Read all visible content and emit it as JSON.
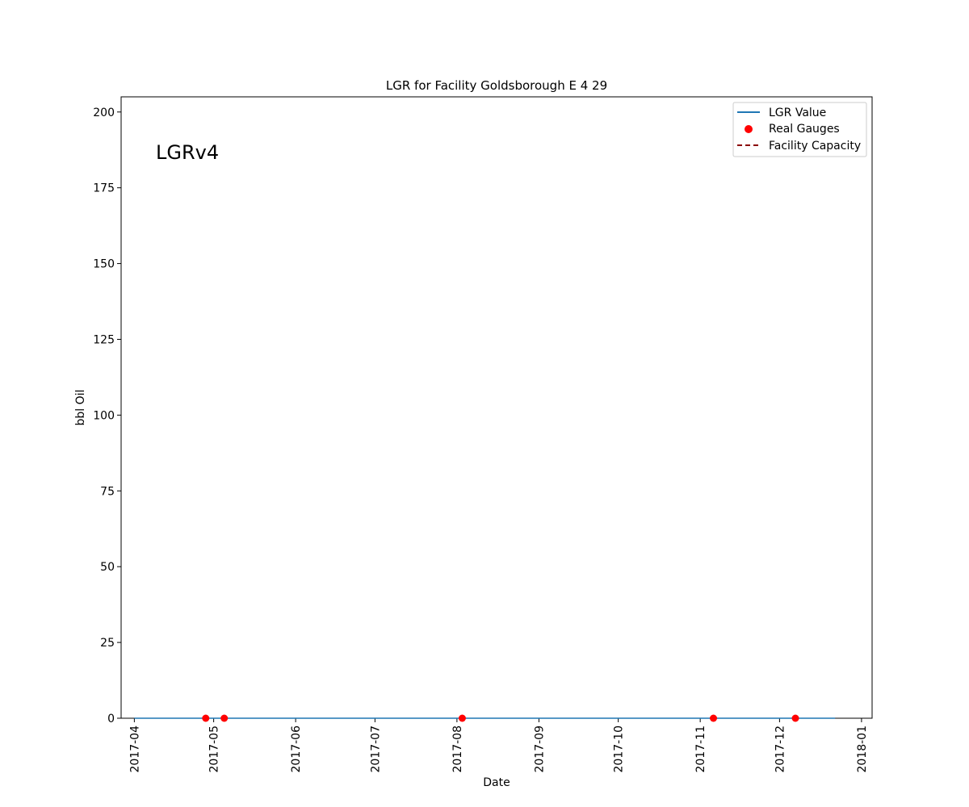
{
  "chart_data": {
    "type": "line",
    "title": "LGR for Facility Goldsborough E 4 29",
    "xlabel": "Date",
    "ylabel": "bbl Oil",
    "annotation": "LGRv4",
    "x_type": "date",
    "xlim": [
      "2017-03-27",
      "2018-01-05"
    ],
    "ylim": [
      0,
      205
    ],
    "x_ticks": [
      "2017-04",
      "2017-05",
      "2017-06",
      "2017-07",
      "2017-08",
      "2017-09",
      "2017-10",
      "2017-11",
      "2017-12",
      "2018-01"
    ],
    "y_ticks": [
      0,
      25,
      50,
      75,
      100,
      125,
      150,
      175,
      200
    ],
    "grid": false,
    "legend_position": "top-right",
    "series": [
      {
        "name": "LGR Value",
        "kind": "line",
        "color": "#1f77b4",
        "style": "solid",
        "x": [
          "2017-04-01",
          "2017-12-22"
        ],
        "y": [
          0,
          0
        ]
      },
      {
        "name": "Real Gauges",
        "kind": "scatter",
        "color": "#ff0000",
        "x": [
          "2017-04-28",
          "2017-05-05",
          "2017-08-03",
          "2017-11-06",
          "2017-12-07"
        ],
        "y": [
          0,
          0,
          0,
          0,
          0
        ]
      },
      {
        "name": "Facility Capacity",
        "kind": "line",
        "color": "#8b0000",
        "style": "dashed",
        "x": [],
        "y": []
      }
    ]
  }
}
